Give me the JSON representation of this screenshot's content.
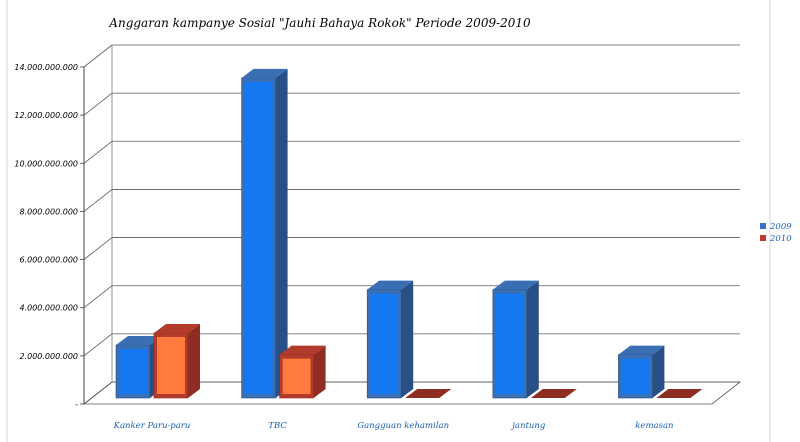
{
  "chart_data": {
    "type": "bar",
    "title": "Anggaran kampanye Sosial \"Jauhi Bahaya Rokok\" Periode 2009-2010",
    "categories": [
      "Kanker Paru-paru",
      "TBC",
      "Gangguan kehamilan",
      "jantung",
      "kemasan"
    ],
    "series": [
      {
        "name": "2009",
        "values": [
          2200000000,
          13300000000,
          4500000000,
          4500000000,
          1800000000
        ]
      },
      {
        "name": "2010",
        "values": [
          2700000000,
          1800000000,
          0,
          0,
          0
        ]
      }
    ],
    "ylim": [
      0,
      14000000000
    ],
    "y_ticks": [
      "-",
      "2.000.000.000",
      "4.000.000.000",
      "6.000.000.000",
      "8.000.000.000",
      "10.000.000.000",
      "12.000.000.000",
      "14.000.000.000"
    ],
    "xlabel": "",
    "ylabel": "",
    "grid": true,
    "legend_position": "right",
    "colors": {
      "2009_front": "#1478f0",
      "2009_side": "#2a4f86",
      "2009_top": "#3b6fb3",
      "2010_front": "#ff7a3c",
      "2010_side": "#8e2d22",
      "2010_top": "#b23b2b",
      "legend_2009": "#3a6fc4",
      "legend_2010": "#c0392b"
    }
  }
}
